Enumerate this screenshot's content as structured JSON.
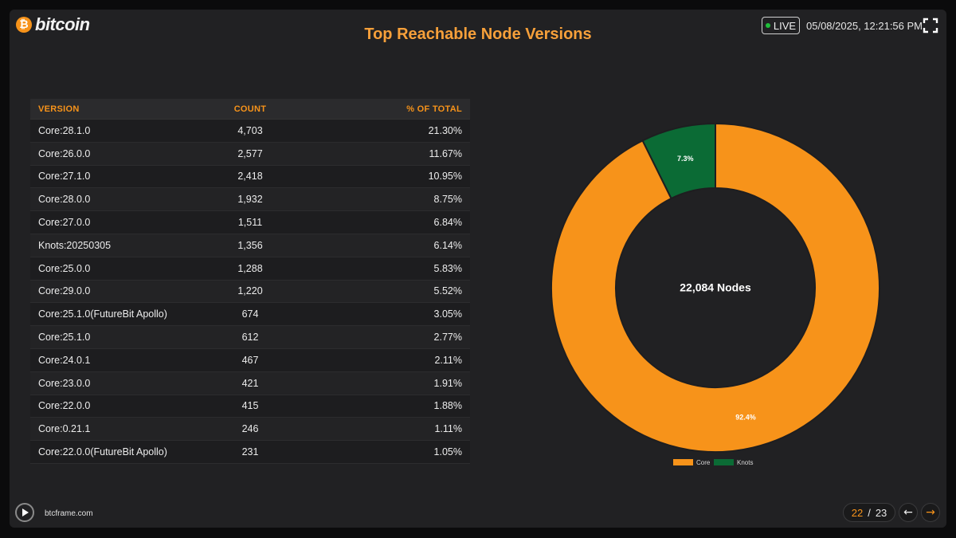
{
  "header": {
    "logo_symbol": "₿",
    "logo_text": "bitcoin",
    "title": "Top Reachable Node Versions",
    "live_label": "LIVE",
    "timestamp": "05/08/2025, 12:21:56 PM",
    "fullscreen_icon": "fullscreen-icon"
  },
  "table": {
    "headers": {
      "version": "VERSION",
      "count": "COUNT",
      "pct": "% OF TOTAL"
    },
    "rows": [
      {
        "version": "Core:28.1.0",
        "count": "4,703",
        "pct": "21.30%"
      },
      {
        "version": "Core:26.0.0",
        "count": "2,577",
        "pct": "11.67%"
      },
      {
        "version": "Core:27.1.0",
        "count": "2,418",
        "pct": "10.95%"
      },
      {
        "version": "Core:28.0.0",
        "count": "1,932",
        "pct": "8.75%"
      },
      {
        "version": "Core:27.0.0",
        "count": "1,511",
        "pct": "6.84%"
      },
      {
        "version": "Knots:20250305",
        "count": "1,356",
        "pct": "6.14%"
      },
      {
        "version": "Core:25.0.0",
        "count": "1,288",
        "pct": "5.83%"
      },
      {
        "version": "Core:29.0.0",
        "count": "1,220",
        "pct": "5.52%"
      },
      {
        "version": "Core:25.1.0(FutureBit Apollo)",
        "count": "674",
        "pct": "3.05%"
      },
      {
        "version": "Core:25.1.0",
        "count": "612",
        "pct": "2.77%"
      },
      {
        "version": "Core:24.0.1",
        "count": "467",
        "pct": "2.11%"
      },
      {
        "version": "Core:23.0.0",
        "count": "421",
        "pct": "1.91%"
      },
      {
        "version": "Core:22.0.0",
        "count": "415",
        "pct": "1.88%"
      },
      {
        "version": "Core:0.21.1",
        "count": "246",
        "pct": "1.11%"
      },
      {
        "version": "Core:22.0.0(FutureBit Apollo)",
        "count": "231",
        "pct": "1.05%"
      }
    ]
  },
  "chart_data": {
    "type": "pie",
    "center_label": "22,084 Nodes",
    "slices": [
      {
        "name": "Core",
        "value": 92.4,
        "label": "92.4%",
        "color": "#f7931a"
      },
      {
        "name": "Knots",
        "value": 7.3,
        "label": "7.3%",
        "color": "#0b6b35"
      }
    ],
    "legend_position": "bottom"
  },
  "footer": {
    "play_icon": "play-icon",
    "site": "btcframe.com",
    "page_current": "22",
    "page_sep": "/",
    "page_total": "23",
    "prev_symbol": "←",
    "next_symbol": "→"
  }
}
